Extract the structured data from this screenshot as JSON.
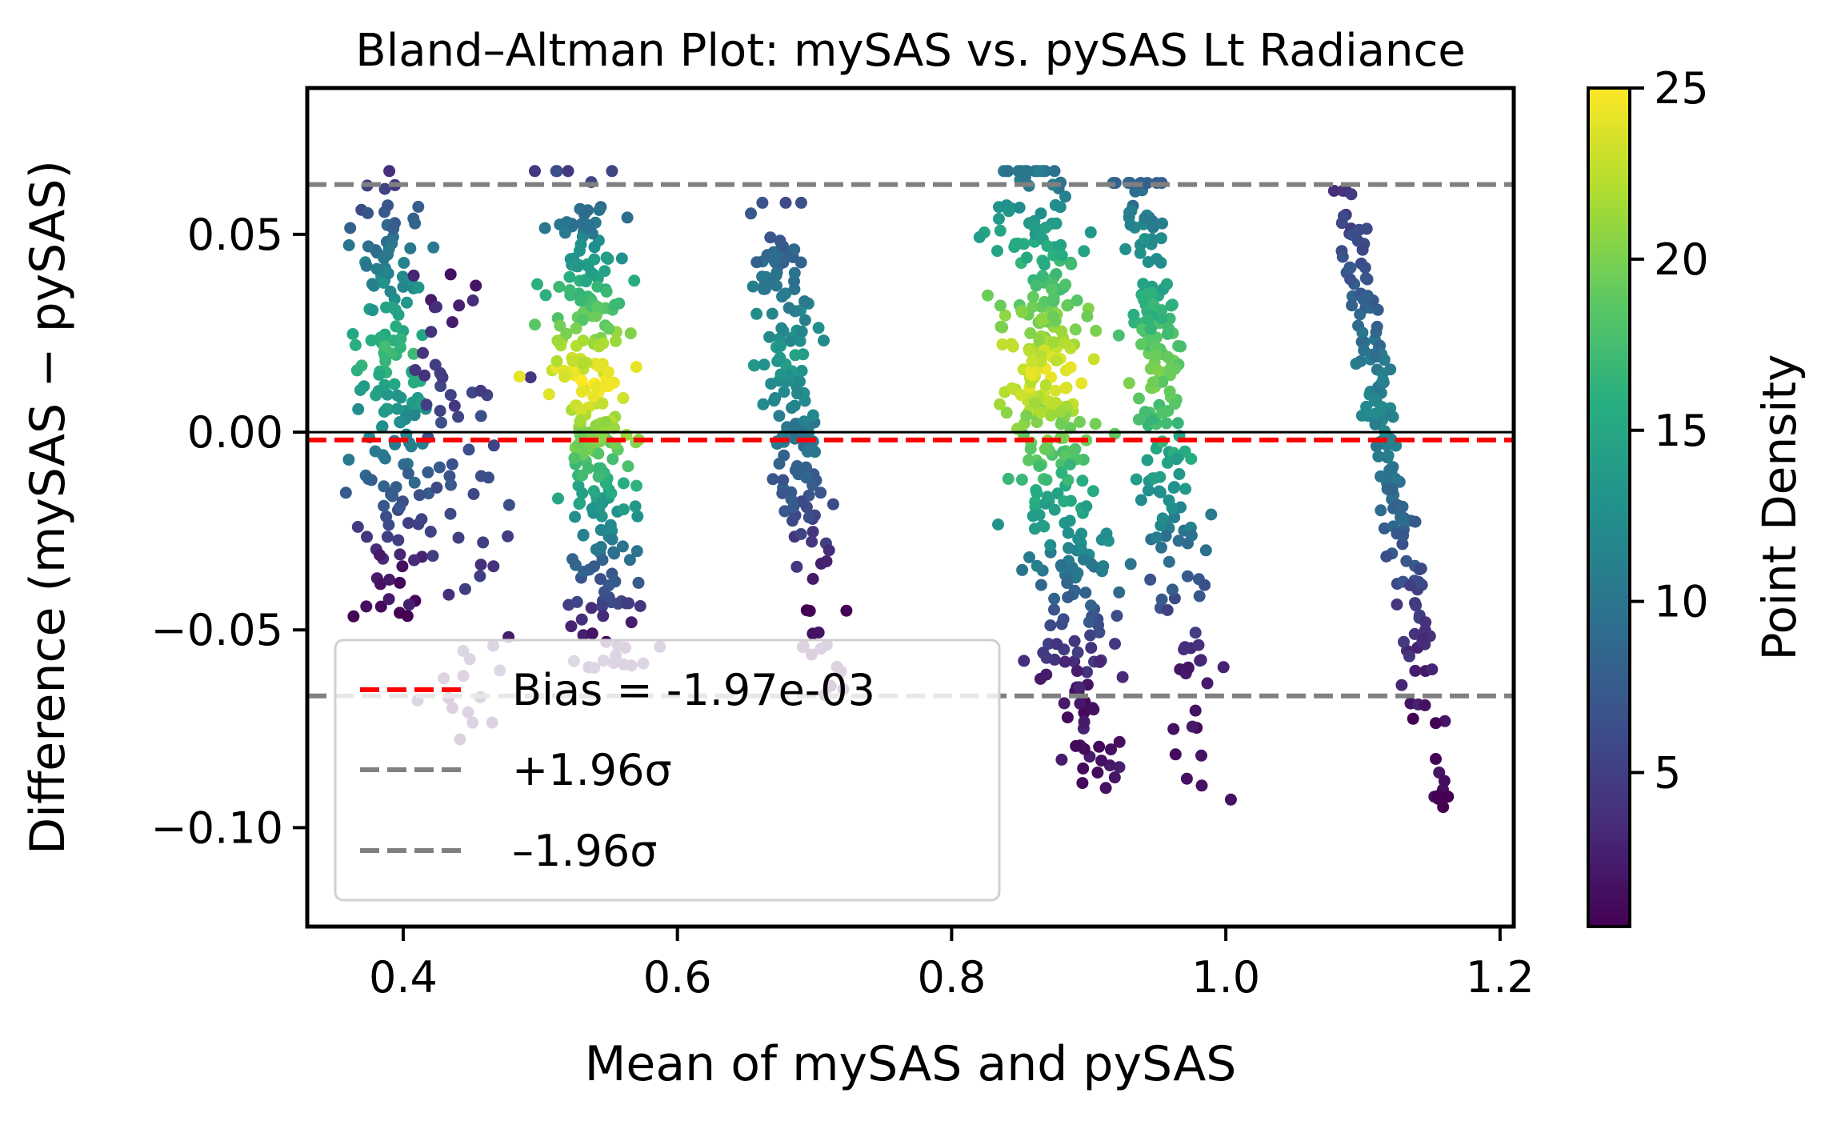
{
  "chart_data": {
    "type": "scatter",
    "title": "Bland–Altman Plot: mySAS vs. pySAS Lt Radiance",
    "xlabel": "Mean of mySAS and pySAS",
    "ylabel": "Difference (mySAS − pySAS)",
    "xlim": [
      0.33,
      1.21
    ],
    "ylim": [
      -0.125,
      0.087
    ],
    "xticks": [
      0.4,
      0.6,
      0.8,
      1.0,
      1.2
    ],
    "xtick_labels": [
      "0.4",
      "0.6",
      "0.8",
      "1.0",
      "1.2"
    ],
    "yticks": [
      -0.1,
      -0.05,
      0.0,
      0.05
    ],
    "ytick_labels": [
      "−0.10",
      "−0.05",
      "0.00",
      "0.05"
    ],
    "grid": false,
    "reference_lines": {
      "zero": 0.0,
      "bias": -0.00197,
      "upper_loa": 0.0626,
      "lower_loa": -0.0667
    },
    "legend": {
      "placement": "lower-left",
      "entries": [
        {
          "label": "Bias = -1.97e-03",
          "color": "#ff0000",
          "style": "dashed"
        },
        {
          "label": "+1.96σ",
          "color": "#808080",
          "style": "dashed"
        },
        {
          "label": "–1.96σ",
          "color": "#808080",
          "style": "dashed"
        }
      ]
    },
    "colorbar": {
      "label": "Point Density",
      "range": [
        0.5,
        25
      ],
      "ticks": [
        5,
        10,
        15,
        20,
        25
      ],
      "tick_labels": [
        "5",
        "10",
        "15",
        "20",
        "25"
      ],
      "colormap": "viridis"
    },
    "clusters": [
      {
        "x_center": 0.39,
        "y_top": 0.058,
        "y_bottom": -0.048,
        "x_slope": 0.0,
        "spread": 0.012,
        "count": 170,
        "peak_density": 17,
        "peak_y": 0.02
      },
      {
        "x_center": 0.44,
        "y_top": 0.04,
        "y_bottom": -0.082,
        "x_slope": -0.12,
        "spread": 0.018,
        "count": 70,
        "peak_density": 7,
        "peak_y": -0.01
      },
      {
        "x_center": 0.54,
        "y_top": 0.058,
        "y_bottom": -0.06,
        "x_slope": -0.22,
        "spread": 0.014,
        "count": 300,
        "peak_density": 25,
        "peak_y": 0.012
      },
      {
        "x_center": 0.69,
        "y_top": 0.05,
        "y_bottom": -0.068,
        "x_slope": -0.33,
        "spread": 0.011,
        "count": 170,
        "peak_density": 14,
        "peak_y": 0.018
      },
      {
        "x_center": 0.88,
        "y_top": 0.058,
        "y_bottom": -0.09,
        "x_slope": -0.28,
        "spread": 0.016,
        "count": 360,
        "peak_density": 24,
        "peak_y": 0.015
      },
      {
        "x_center": 0.96,
        "y_top": 0.055,
        "y_bottom": -0.09,
        "x_slope": -0.3,
        "spread": 0.01,
        "count": 200,
        "peak_density": 20,
        "peak_y": 0.015
      },
      {
        "x_center": 1.125,
        "y_top": 0.053,
        "y_bottom": -0.095,
        "x_slope": -0.47,
        "spread": 0.006,
        "count": 170,
        "peak_density": 12,
        "peak_y": 0.005
      }
    ],
    "colors": {
      "bias_line": "#ff0000",
      "loa_line": "#808080",
      "zero_line": "#000000"
    }
  }
}
